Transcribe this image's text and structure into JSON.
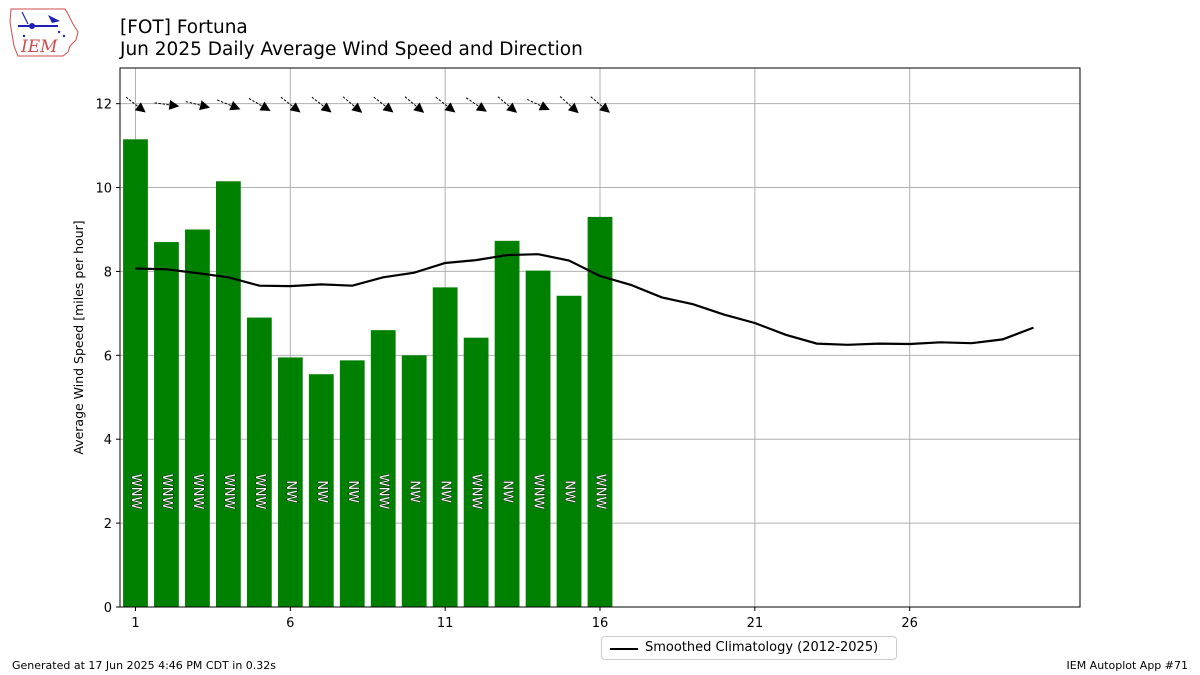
{
  "header": {
    "station": "[FOT] Fortuna",
    "subtitle": "Jun 2025 Daily Average Wind Speed and Direction"
  },
  "logo": {
    "text": "IEM"
  },
  "footer": {
    "generated": "Generated at 17 Jun 2025 4:46 PM CDT in 0.32s",
    "app": "IEM Autoplot App #71"
  },
  "legend": {
    "label": "Smoothed Climatology (2012-2025)"
  },
  "colors": {
    "bars": "#008000",
    "climatology": "#000000",
    "grid": "#b0b0b0"
  },
  "chart_data": {
    "type": "bar",
    "ylabel": "Average Wind Speed [miles per hour]",
    "xlabel": "",
    "xlim": [
      0.5,
      31.5
    ],
    "ylim": [
      0,
      12.85
    ],
    "x_ticks": [
      1,
      6,
      11,
      16,
      21,
      26
    ],
    "y_ticks": [
      0,
      2,
      4,
      6,
      8,
      10,
      12
    ],
    "grid": true,
    "legend_position": "bottom-center",
    "days": [
      1,
      2,
      3,
      4,
      5,
      6,
      7,
      8,
      9,
      10,
      11,
      12,
      13,
      14,
      15,
      16
    ],
    "speeds": [
      11.15,
      8.7,
      9.0,
      10.15,
      6.9,
      5.95,
      5.55,
      5.88,
      6.6,
      6.0,
      7.62,
      6.42,
      8.73,
      8.02,
      7.42,
      9.3
    ],
    "directions": [
      "WNW",
      "WNW",
      "WNW",
      "WNW",
      "WNW",
      "NW",
      "NW",
      "NW",
      "WNW",
      "NW",
      "NW",
      "WNW",
      "NW",
      "WNW",
      "NW",
      "WNW"
    ],
    "wind_arrow_angles_deg": [
      38,
      8,
      14,
      22,
      30,
      38,
      38,
      40,
      38,
      40,
      38,
      34,
      40,
      25,
      42,
      40
    ],
    "climatology": {
      "name": "Smoothed Climatology (2012-2025)",
      "x": [
        1,
        2,
        3,
        4,
        5,
        6,
        7,
        8,
        9,
        10,
        11,
        12,
        13,
        14,
        15,
        16,
        17,
        18,
        19,
        20,
        21,
        22,
        23,
        24,
        25,
        26,
        27,
        28,
        29,
        30
      ],
      "y": [
        8.07,
        8.05,
        7.96,
        7.86,
        7.66,
        7.65,
        7.69,
        7.66,
        7.86,
        7.97,
        8.2,
        8.27,
        8.39,
        8.41,
        8.26,
        7.89,
        7.68,
        7.38,
        7.22,
        6.97,
        6.77,
        6.49,
        6.28,
        6.25,
        6.28,
        6.27,
        6.31,
        6.29,
        6.38,
        6.66
      ]
    }
  }
}
